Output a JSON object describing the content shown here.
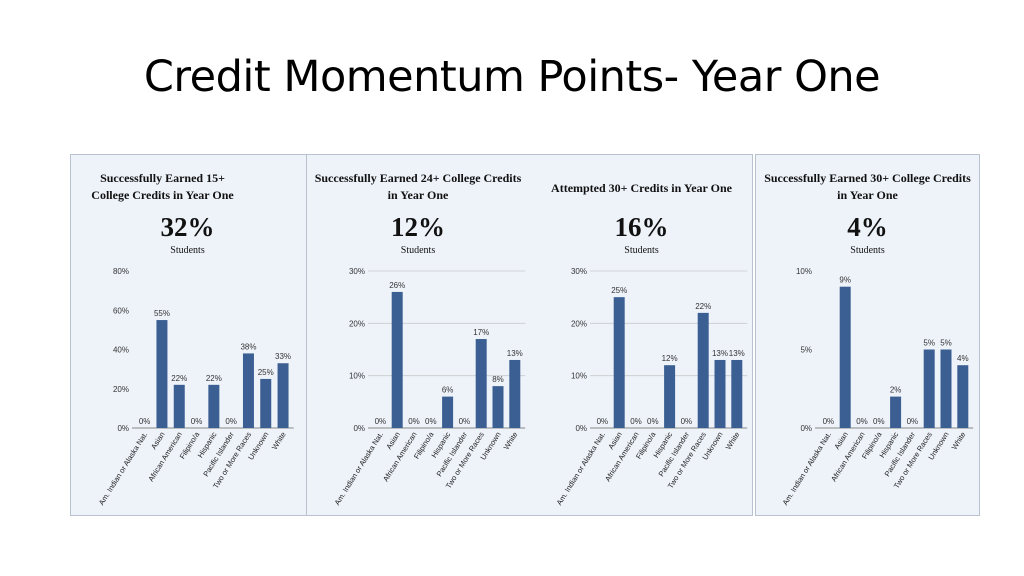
{
  "title": "Credit Momentum Points- Year One",
  "colors": {
    "bar": "#3b5f92",
    "panel_bg": "#eef3fa",
    "border": "#b9c3d0"
  },
  "panels": [
    {
      "title": "Successfully Earned 15+ College Credits in Year One",
      "percent": "32%",
      "subtitle": "Students"
    },
    {
      "title": "Successfully Earned 24+ College Credits in Year One",
      "percent": "12%",
      "subtitle": "Students"
    },
    {
      "title": "Attempted 30+ Credits in Year One",
      "percent": "16%",
      "subtitle": "Students"
    },
    {
      "title": "Successfully Earned 30+ College Credits in Year One",
      "percent": "4%",
      "subtitle": "Students"
    }
  ],
  "chart_data": [
    {
      "type": "bar",
      "title": "Successfully Earned 15+ College Credits in Year One",
      "categories": [
        "Am. Indian or Alaska Nat.",
        "Asian",
        "African American",
        "Filipino/a",
        "Hispanic",
        "Pacific Islander",
        "Two or More Races",
        "Unknown",
        "White"
      ],
      "values": [
        0,
        55,
        22,
        0,
        22,
        0,
        38,
        25,
        33
      ],
      "labels": [
        "0%",
        "55%",
        "22%",
        "0%",
        "22%",
        "0%",
        "38%",
        "25%",
        "33%"
      ],
      "ylim": [
        0,
        80
      ],
      "yticks": [
        0,
        20,
        40,
        60,
        80
      ],
      "ytick_labels": [
        "0%",
        "20%",
        "40%",
        "60%",
        "80%"
      ],
      "grid": false
    },
    {
      "type": "bar",
      "title": "Successfully Earned 24+ College Credits in Year One",
      "categories": [
        "Am. Indian or Alaska Nat.",
        "Asian",
        "African American",
        "Filipino/a",
        "Hispanic",
        "Pacific Islander",
        "Two or More Races",
        "Unknown",
        "White"
      ],
      "values": [
        0,
        26,
        0,
        0,
        6,
        0,
        17,
        8,
        13
      ],
      "labels": [
        "0%",
        "26%",
        "0%",
        "0%",
        "6%",
        "0%",
        "17%",
        "8%",
        "13%"
      ],
      "ylim": [
        0,
        30
      ],
      "yticks": [
        0,
        10,
        20,
        30
      ],
      "ytick_labels": [
        "0%",
        "10%",
        "20%",
        "30%"
      ],
      "grid": true
    },
    {
      "type": "bar",
      "title": "Attempted 30+ Credits in Year One",
      "categories": [
        "Am. Indian or Alaska Nat.",
        "Asian",
        "African American",
        "Filipino/a",
        "Hispanic",
        "Pacific Islander",
        "Two or More Races",
        "Unknown",
        "White"
      ],
      "values": [
        0,
        25,
        0,
        0,
        12,
        0,
        22,
        13,
        13
      ],
      "labels": [
        "0%",
        "25%",
        "0%",
        "0%",
        "12%",
        "0%",
        "22%",
        "13%",
        "13%"
      ],
      "ylim": [
        0,
        30
      ],
      "yticks": [
        0,
        10,
        20,
        30
      ],
      "ytick_labels": [
        "0%",
        "10%",
        "20%",
        "30%"
      ],
      "grid": true
    },
    {
      "type": "bar",
      "title": "Successfully Earned 30+ College Credits in Year One",
      "categories": [
        "Am. Indian or Alaska Nat.",
        "Asian",
        "African American",
        "Filipino/a",
        "Hispanic",
        "Pacific Islander",
        "Two or More Races",
        "Unknown",
        "White"
      ],
      "values": [
        0,
        9,
        0,
        0,
        2,
        0,
        5,
        5,
        4
      ],
      "labels": [
        "0%",
        "9%",
        "0%",
        "0%",
        "2%",
        "0%",
        "5%",
        "5%",
        "4%"
      ],
      "ylim": [
        0,
        10
      ],
      "yticks": [
        0,
        5,
        10
      ],
      "ytick_labels": [
        "0%",
        "5%",
        "10%"
      ],
      "grid": false
    }
  ]
}
